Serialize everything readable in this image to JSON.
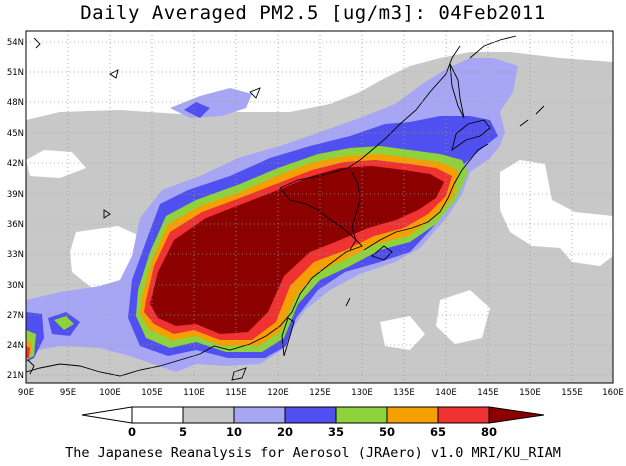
{
  "title": "Daily Averaged PM2.5 [ug/m3]: 04Feb2011",
  "footer": "The Japanese Reanalysis for Aerosol (JRAero) v1.0 MRI/KU_RIAM",
  "map": {
    "lon_range": [
      90,
      160
    ],
    "lat_range": [
      20,
      55
    ],
    "lon_ticks": [
      "90E",
      "95E",
      "100E",
      "105E",
      "110E",
      "115E",
      "120E",
      "125E",
      "130E",
      "135E",
      "140E",
      "145E",
      "150E",
      "155E",
      "160E"
    ],
    "lat_ticks": [
      "21N",
      "24N",
      "27N",
      "30N",
      "33N",
      "36N",
      "39N",
      "42N",
      "45N",
      "48N",
      "51N",
      "54N"
    ],
    "gridlines": true
  },
  "colorbar": {
    "levels": [
      "0",
      "5",
      "10",
      "20",
      "35",
      "50",
      "65",
      "80"
    ],
    "colors": [
      "#ffffff",
      "#c8c8c8",
      "#a6a6f4",
      "#5050f0",
      "#8ed23c",
      "#f5a000",
      "#f03232",
      "#8c0000"
    ],
    "lower_extend_color": "#ffffff",
    "upper_extend_color": "#8c0000"
  }
}
